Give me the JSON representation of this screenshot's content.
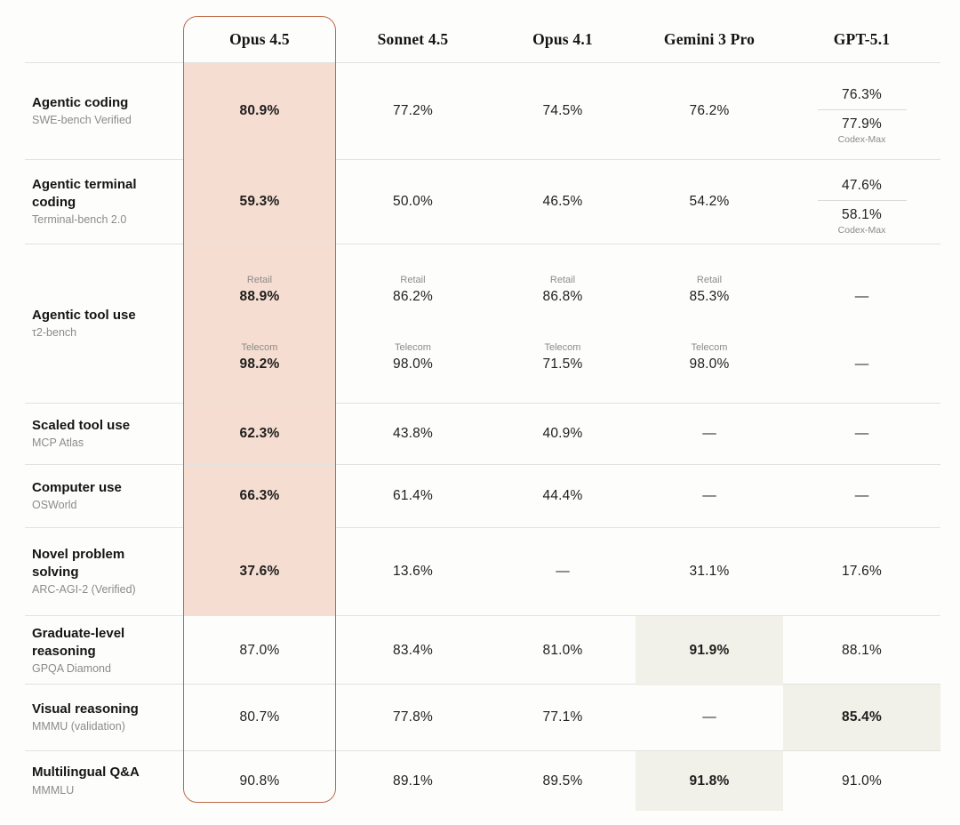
{
  "colors": {
    "accent_border": "#c1694a",
    "highlight_pink": "#f6ddd2",
    "highlight_cream": "#f1f0e9",
    "row_line": "#e3e2de",
    "text_muted": "#8b8b87"
  },
  "chart_data": {
    "type": "table",
    "title": "",
    "dash": "—",
    "columns": [
      "Opus 4.5",
      "Sonnet 4.5",
      "Opus 4.1",
      "Gemini 3 Pro",
      "GPT-5.1"
    ],
    "highlighted_column": "Opus 4.5",
    "rows": [
      {
        "task": "Agentic coding",
        "benchmark": "SWE-bench Verified",
        "cells": [
          {
            "type": "value",
            "value": "80.9%",
            "bold": true,
            "bg": "pink"
          },
          {
            "type": "value",
            "value": "77.2%"
          },
          {
            "type": "value",
            "value": "74.5%"
          },
          {
            "type": "value",
            "value": "76.2%"
          },
          {
            "type": "split",
            "values": [
              {
                "value": "76.3%"
              },
              {
                "value": "77.9%",
                "label": "Codex-Max"
              }
            ]
          }
        ]
      },
      {
        "task": "Agentic terminal coding",
        "benchmark": "Terminal-bench 2.0",
        "cells": [
          {
            "type": "value",
            "value": "59.3%",
            "bold": true,
            "bg": "pink"
          },
          {
            "type": "value",
            "value": "50.0%"
          },
          {
            "type": "value",
            "value": "46.5%"
          },
          {
            "type": "value",
            "value": "54.2%"
          },
          {
            "type": "split",
            "values": [
              {
                "value": "47.6%"
              },
              {
                "value": "58.1%",
                "label": "Codex-Max"
              }
            ]
          }
        ]
      },
      {
        "task": "Agentic tool use",
        "benchmark": "τ2-bench",
        "cells": [
          {
            "type": "dual",
            "bold": true,
            "bg": "pink",
            "groups": [
              {
                "label": "Retail",
                "value": "88.9%"
              },
              {
                "label": "Telecom",
                "value": "98.2%"
              }
            ]
          },
          {
            "type": "dual",
            "groups": [
              {
                "label": "Retail",
                "value": "86.2%"
              },
              {
                "label": "Telecom",
                "value": "98.0%"
              }
            ]
          },
          {
            "type": "dual",
            "groups": [
              {
                "label": "Retail",
                "value": "86.8%"
              },
              {
                "label": "Telecom",
                "value": "71.5%"
              }
            ]
          },
          {
            "type": "dual",
            "groups": [
              {
                "label": "Retail",
                "value": "85.3%"
              },
              {
                "label": "Telecom",
                "value": "98.0%"
              }
            ]
          },
          {
            "type": "dual",
            "groups": [
              {
                "label": "",
                "value": "—"
              },
              {
                "label": "",
                "value": "—"
              }
            ]
          }
        ]
      },
      {
        "task": "Scaled tool use",
        "benchmark": "MCP Atlas",
        "cells": [
          {
            "type": "value",
            "value": "62.3%",
            "bold": true,
            "bg": "pink"
          },
          {
            "type": "value",
            "value": "43.8%"
          },
          {
            "type": "value",
            "value": "40.9%"
          },
          {
            "type": "dash"
          },
          {
            "type": "dash"
          }
        ]
      },
      {
        "task": "Computer use",
        "benchmark": "OSWorld",
        "cells": [
          {
            "type": "value",
            "value": "66.3%",
            "bold": true,
            "bg": "pink"
          },
          {
            "type": "value",
            "value": "61.4%"
          },
          {
            "type": "value",
            "value": "44.4%"
          },
          {
            "type": "dash"
          },
          {
            "type": "dash"
          }
        ]
      },
      {
        "task": "Novel problem solving",
        "benchmark": "ARC-AGI-2 (Verified)",
        "cells": [
          {
            "type": "value",
            "value": "37.6%",
            "bold": true,
            "bg": "pink"
          },
          {
            "type": "value",
            "value": "13.6%"
          },
          {
            "type": "dash"
          },
          {
            "type": "value",
            "value": "31.1%"
          },
          {
            "type": "value",
            "value": "17.6%"
          }
        ]
      },
      {
        "task": "Graduate-level reasoning",
        "benchmark": "GPQA Diamond",
        "cells": [
          {
            "type": "value",
            "value": "87.0%"
          },
          {
            "type": "value",
            "value": "83.4%"
          },
          {
            "type": "value",
            "value": "81.0%"
          },
          {
            "type": "value",
            "value": "91.9%",
            "bold": true,
            "bg": "cream"
          },
          {
            "type": "value",
            "value": "88.1%"
          }
        ]
      },
      {
        "task": "Visual reasoning",
        "benchmark": "MMMU (validation)",
        "cells": [
          {
            "type": "value",
            "value": "80.7%"
          },
          {
            "type": "value",
            "value": "77.8%"
          },
          {
            "type": "value",
            "value": "77.1%"
          },
          {
            "type": "dash"
          },
          {
            "type": "value",
            "value": "85.4%",
            "bold": true,
            "bg": "cream"
          }
        ]
      },
      {
        "task": "Multilingual Q&A",
        "benchmark": "MMMLU",
        "cells": [
          {
            "type": "value",
            "value": "90.8%"
          },
          {
            "type": "value",
            "value": "89.1%"
          },
          {
            "type": "value",
            "value": "89.5%"
          },
          {
            "type": "value",
            "value": "91.8%",
            "bold": true,
            "bg": "cream"
          },
          {
            "type": "value",
            "value": "91.0%"
          }
        ]
      }
    ]
  }
}
